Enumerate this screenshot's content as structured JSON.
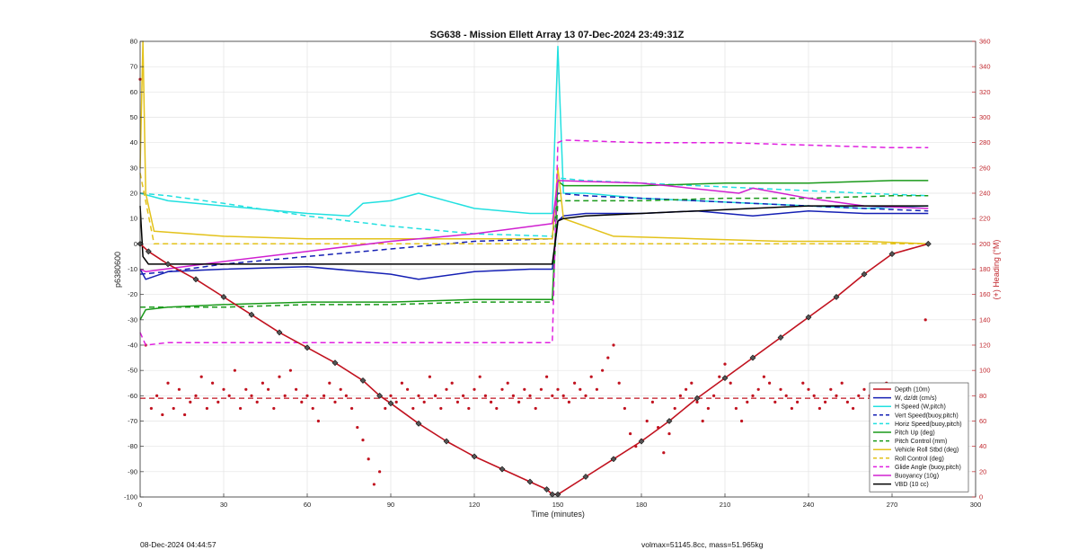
{
  "chart_data": {
    "type": "line",
    "title": "SG638 - Mission Ellett Array 13 07-Dec-2024 23:49:31Z",
    "xlabel": "Time (minutes)",
    "ylabel": "p6380600",
    "ylabel_right": "(+) Heading (°M)",
    "xlim": [
      0,
      300
    ],
    "ylim": [
      -100,
      80
    ],
    "ylim_right": [
      0,
      360
    ],
    "xticks": [
      0,
      30,
      60,
      90,
      120,
      150,
      180,
      210,
      240,
      270,
      300
    ],
    "yticks": [
      -100,
      -90,
      -80,
      -70,
      -60,
      -50,
      -40,
      -30,
      -20,
      -10,
      0,
      10,
      20,
      30,
      40,
      50,
      60,
      70,
      80
    ],
    "yticks_right": [
      0,
      20,
      40,
      60,
      80,
      100,
      120,
      140,
      160,
      180,
      200,
      220,
      240,
      260,
      280,
      300,
      320,
      340,
      360
    ],
    "grid": true,
    "legend_position": "bottom-right",
    "series": [
      {
        "name": "Depth (10m)",
        "color": "#c1121f",
        "style": "solid",
        "markers": true,
        "x": [
          0,
          3,
          10,
          20,
          30,
          40,
          50,
          60,
          70,
          80,
          86,
          90,
          100,
          110,
          120,
          130,
          140,
          146,
          148,
          150,
          160,
          170,
          180,
          190,
          200,
          210,
          220,
          230,
          240,
          250,
          260,
          270,
          283
        ],
        "y": [
          0,
          -3,
          -8,
          -14,
          -21,
          -28,
          -35,
          -41,
          -47,
          -54,
          -60,
          -63,
          -71,
          -78,
          -84,
          -89,
          -94,
          -97,
          -99,
          -99,
          -92,
          -85,
          -78,
          -70,
          -61,
          -53,
          -45,
          -37,
          -29,
          -21,
          -12,
          -4,
          0
        ]
      },
      {
        "name": "W, dz/dt (cm/s)",
        "color": "#1520b4",
        "style": "solid",
        "x": [
          0,
          2,
          10,
          30,
          60,
          90,
          100,
          120,
          140,
          148,
          150,
          152,
          160,
          180,
          200,
          220,
          240,
          260,
          283
        ],
        "y": [
          -10,
          -14,
          -11,
          -10,
          -9,
          -12,
          -14,
          -11,
          -10,
          -10,
          9,
          11,
          12,
          12,
          13,
          11,
          13,
          12,
          12
        ]
      },
      {
        "name": "H Speed (W,pitch)",
        "color": "#22e0e0",
        "style": "solid",
        "x": [
          0,
          10,
          30,
          60,
          75,
          80,
          90,
          100,
          120,
          140,
          148,
          150,
          152,
          160,
          180,
          200,
          220,
          240,
          260,
          283
        ],
        "y": [
          20,
          17,
          15,
          12,
          11,
          16,
          17,
          20,
          14,
          12,
          12,
          78,
          20,
          20,
          18,
          17,
          16,
          15,
          14,
          15
        ]
      },
      {
        "name": "Vert Speed(buoy,pitch)",
        "color": "#1520b4",
        "style": "dashed",
        "x": [
          0,
          10,
          30,
          60,
          90,
          120,
          148,
          150,
          160,
          180,
          200,
          220,
          240,
          260,
          283
        ],
        "y": [
          -12,
          -11,
          -8,
          -5,
          -2,
          1,
          2,
          20,
          19,
          18,
          17,
          16,
          15,
          14,
          13
        ]
      },
      {
        "name": "Horiz Speed(buoy,pitch)",
        "color": "#22e0e0",
        "style": "dashed",
        "x": [
          0,
          10,
          30,
          60,
          90,
          120,
          148,
          150,
          160,
          180,
          200,
          220,
          240,
          260,
          283
        ],
        "y": [
          20,
          19,
          16,
          11,
          7,
          4,
          3,
          26,
          25,
          24,
          23,
          22,
          21,
          20,
          19
        ]
      },
      {
        "name": "Pitch Up (deg)",
        "color": "#1a9a1a",
        "style": "solid",
        "x": [
          0,
          2,
          10,
          30,
          60,
          90,
          120,
          148,
          150,
          152,
          180,
          210,
          240,
          270,
          283
        ],
        "y": [
          -30,
          -26,
          -25,
          -24,
          -23,
          -23,
          -22,
          -22,
          25,
          23,
          23,
          24,
          24,
          25,
          25
        ]
      },
      {
        "name": "Pitch Control (mm)",
        "color": "#1a9a1a",
        "style": "dashed",
        "x": [
          0,
          2,
          30,
          60,
          90,
          120,
          148,
          150,
          180,
          210,
          240,
          270,
          283
        ],
        "y": [
          -25,
          -25,
          -25,
          -24,
          -24,
          -23,
          -23,
          17,
          17,
          18,
          18,
          19,
          19
        ]
      },
      {
        "name": "Vehicle Roll Stbd (deg)",
        "color": "#e3c21a",
        "style": "solid",
        "x": [
          0,
          1,
          2,
          5,
          30,
          60,
          90,
          120,
          148,
          150,
          152,
          170,
          200,
          230,
          260,
          283
        ],
        "y": [
          30,
          80,
          20,
          5,
          3,
          2,
          2,
          2,
          2,
          30,
          10,
          3,
          2,
          1,
          1,
          0
        ]
      },
      {
        "name": "Roll Control (deg)",
        "color": "#e3c21a",
        "style": "dashed",
        "x": [
          0,
          5,
          30,
          60,
          90,
          120,
          148,
          150,
          180,
          210,
          240,
          270,
          283
        ],
        "y": [
          28,
          0,
          0,
          0,
          0,
          0,
          0,
          0,
          0,
          0,
          0,
          0,
          0
        ]
      },
      {
        "name": "Glide Angle (buoy,pitch)",
        "color": "#e020e0",
        "style": "dashed",
        "x": [
          0,
          2,
          10,
          30,
          60,
          90,
          120,
          148,
          150,
          152,
          180,
          210,
          240,
          270,
          283
        ],
        "y": [
          -35,
          -40,
          -39,
          -39,
          -39,
          -39,
          -39,
          -39,
          40,
          41,
          40,
          40,
          39,
          38,
          38
        ]
      },
      {
        "name": "Buoyancy (10g)",
        "color": "#d020d0",
        "style": "solid",
        "x": [
          0,
          2,
          30,
          60,
          90,
          120,
          148,
          150,
          180,
          215,
          220,
          240,
          260,
          283
        ],
        "y": [
          -10,
          -11,
          -7,
          -3,
          1,
          4,
          8,
          25,
          24,
          20,
          22,
          18,
          15,
          14
        ]
      },
      {
        "name": "VBD (10 cc)",
        "color": "#000000",
        "style": "solid",
        "x": [
          0,
          1,
          3,
          30,
          60,
          90,
          120,
          148,
          150,
          152,
          160,
          180,
          200,
          220,
          240,
          260,
          283
        ],
        "y": [
          15,
          -5,
          -8,
          -8,
          -8,
          -8,
          -8,
          -8,
          9,
          10,
          11,
          12,
          13,
          14,
          15,
          15,
          15
        ]
      },
      {
        "name": "Heading (°M)",
        "axis": "right",
        "color": "#c1121f",
        "style": "points",
        "x": [
          0,
          2,
          4,
          6,
          8,
          10,
          12,
          14,
          16,
          18,
          20,
          22,
          24,
          26,
          28,
          30,
          32,
          34,
          36,
          38,
          40,
          42,
          44,
          46,
          48,
          50,
          52,
          54,
          56,
          58,
          60,
          62,
          64,
          66,
          68,
          70,
          72,
          74,
          76,
          78,
          80,
          82,
          84,
          86,
          88,
          90,
          92,
          94,
          96,
          98,
          100,
          102,
          104,
          106,
          108,
          110,
          112,
          114,
          116,
          118,
          120,
          122,
          124,
          126,
          128,
          130,
          132,
          134,
          136,
          138,
          140,
          142,
          144,
          146,
          148,
          150,
          152,
          154,
          156,
          158,
          160,
          162,
          164,
          166,
          168,
          170,
          172,
          174,
          176,
          178,
          180,
          182,
          184,
          186,
          188,
          190,
          192,
          194,
          196,
          198,
          200,
          202,
          204,
          206,
          208,
          210,
          212,
          214,
          216,
          218,
          220,
          222,
          224,
          226,
          228,
          230,
          232,
          234,
          236,
          238,
          240,
          242,
          244,
          246,
          248,
          250,
          252,
          254,
          256,
          258,
          260,
          262,
          264,
          266,
          268,
          270,
          272,
          274,
          276,
          278,
          280,
          282
        ],
        "y": [
          330,
          120,
          70,
          80,
          65,
          90,
          70,
          85,
          65,
          75,
          80,
          95,
          70,
          90,
          75,
          85,
          80,
          100,
          70,
          85,
          80,
          75,
          90,
          85,
          70,
          95,
          80,
          100,
          85,
          75,
          80,
          70,
          60,
          80,
          90,
          75,
          85,
          80,
          70,
          55,
          45,
          30,
          10,
          20,
          70,
          80,
          75,
          90,
          85,
          70,
          80,
          75,
          95,
          80,
          70,
          85,
          90,
          75,
          80,
          70,
          85,
          95,
          80,
          75,
          70,
          85,
          90,
          80,
          75,
          85,
          80,
          70,
          85,
          95,
          80,
          85,
          80,
          75,
          90,
          85,
          80,
          95,
          85,
          100,
          110,
          120,
          90,
          70,
          50,
          40,
          45,
          60,
          75,
          55,
          35,
          50,
          70,
          80,
          85,
          90,
          75,
          60,
          70,
          80,
          95,
          105,
          90,
          70,
          60,
          75,
          80,
          85,
          95,
          90,
          75,
          85,
          80,
          70,
          75,
          90,
          85,
          80,
          70,
          75,
          85,
          80,
          90,
          75,
          70,
          80,
          85,
          80,
          70,
          75,
          90,
          85,
          80,
          70,
          75,
          80,
          85,
          140
        ]
      }
    ],
    "reference_line": {
      "axis": "right",
      "y": 78,
      "color": "#c1121f",
      "style": "dashed"
    }
  },
  "footer": {
    "left_timestamp": "08-Dec-2024 04:44:57",
    "right_info": "volmax=51145.8cc, mass=51.965kg"
  }
}
